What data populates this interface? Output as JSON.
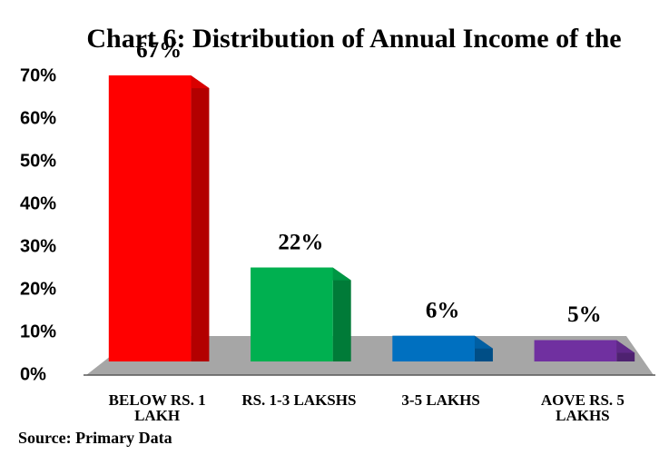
{
  "chart_data": {
    "type": "bar",
    "title": "Chart 6: Distribution of Annual Income of the",
    "categories": [
      "BELOW RS. 1 LAKH",
      "RS. 1-3 LAKSHS",
      "3-5 LAKHS",
      "AOVE RS. 5 LAKHS"
    ],
    "values": [
      67,
      22,
      6,
      5
    ],
    "value_labels": [
      "67%",
      "22%",
      "6%",
      "5%"
    ],
    "colors": [
      "#ff0000",
      "#00b050",
      "#0070c0",
      "#7030a0"
    ],
    "ylim": [
      0,
      70
    ],
    "yticks": [
      {
        "value": 0,
        "label": "0%"
      },
      {
        "value": 10,
        "label": "10%"
      },
      {
        "value": 20,
        "label": "20%"
      },
      {
        "value": 30,
        "label": "30%"
      },
      {
        "value": 40,
        "label": "40%"
      },
      {
        "value": 50,
        "label": "50%"
      },
      {
        "value": 60,
        "label": "60%"
      },
      {
        "value": 70,
        "label": "70%"
      }
    ],
    "source": "Source: Primary Data"
  }
}
